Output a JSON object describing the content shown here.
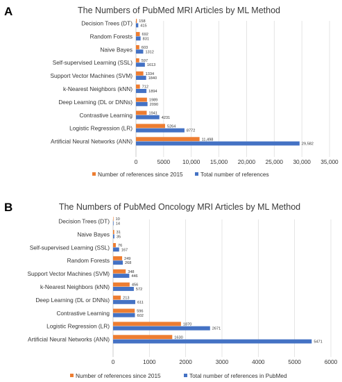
{
  "colors": {
    "orange": "#ED7D31",
    "blue": "#4472C4"
  },
  "chart_data": [
    {
      "panel": "A",
      "type": "bar",
      "orientation": "horizontal",
      "title": "The Numbers of PubMed MRI Articles by ML Method",
      "categories": [
        "Decision Trees (DT)",
        "Random Forests",
        "Naive Bayes",
        "Self-supervised Learning (SSL)",
        "Support Vector Machines (SVM)",
        "k-Nearest Neighbors (kNN)",
        "Deep Learning (DL or DNNs)",
        "Contrastive Learning",
        "Logistic Regression (LR)",
        "Artificial Neural Networks (ANN)"
      ],
      "series": [
        {
          "name": "Number of references since 2015",
          "color": "#ED7D31",
          "values": [
            158,
            692,
            603,
            597,
            1334,
            712,
            1989,
            1941,
            5264,
            11498
          ],
          "labels": [
            "158",
            "692",
            "603",
            "597",
            "1334",
            "712",
            "1989",
            "1941",
            "5264",
            "11,498"
          ]
        },
        {
          "name": "Total number of references",
          "color": "#4472C4",
          "values": [
            415,
            831,
            1312,
            1613,
            1840,
            1894,
            2090,
            4231,
            8772,
            29582
          ],
          "labels": [
            "415",
            "831",
            "1312",
            "1613",
            "1840",
            "1894",
            "2090",
            "4231",
            "8772",
            "29,582"
          ]
        }
      ],
      "xlim": [
        0,
        35000
      ],
      "ticks": [
        0,
        5000,
        10000,
        15000,
        20000,
        25000,
        30000,
        35000
      ],
      "tick_labels": [
        "0",
        "5000",
        "10,000",
        "15,000",
        "20,000",
        "25,000",
        "30,000",
        "35,000"
      ],
      "grid": true,
      "legend": "bottom"
    },
    {
      "panel": "B",
      "type": "bar",
      "orientation": "horizontal",
      "title": "The Numbers of PubMed Oncology MRI Articles  by ML Method",
      "categories": [
        "Decision Trees (DT)",
        "Naive Bayes",
        "Self-supervised Learning (SSL)",
        "Random Forests",
        "Support Vector Machines (SVM)",
        "k-Nearest Neighbors (kNN)",
        "Deep Learning (DL or DNNs)",
        "Contrastive Learning",
        "Logistic Regression (LR)",
        "Artificial Neural Networks (ANN)"
      ],
      "series": [
        {
          "name": "Number of references since 2015",
          "color": "#ED7D31",
          "values": [
            10,
            31,
            76,
            249,
            348,
            456,
            213,
            596,
            1870,
            1630
          ],
          "labels": [
            "10",
            "31",
            "76",
            "249",
            "348",
            "456",
            "213",
            "596",
            "1870",
            "1630"
          ]
        },
        {
          "name": "Total number of references in PubMed",
          "color": "#4472C4",
          "values": [
            14,
            35,
            167,
            268,
            446,
            572,
            611,
            602,
            2671,
            5471
          ],
          "labels": [
            "14",
            "35",
            "167",
            "268",
            "446",
            "572",
            "611",
            "602",
            "2671",
            "5471"
          ]
        }
      ],
      "xlim": [
        0,
        6000
      ],
      "ticks": [
        0,
        1000,
        2000,
        3000,
        4000,
        5000,
        6000
      ],
      "tick_labels": [
        "0",
        "1000",
        "2000",
        "3000",
        "4000",
        "5000",
        "6000"
      ],
      "grid": true,
      "legend": "bottom"
    }
  ]
}
